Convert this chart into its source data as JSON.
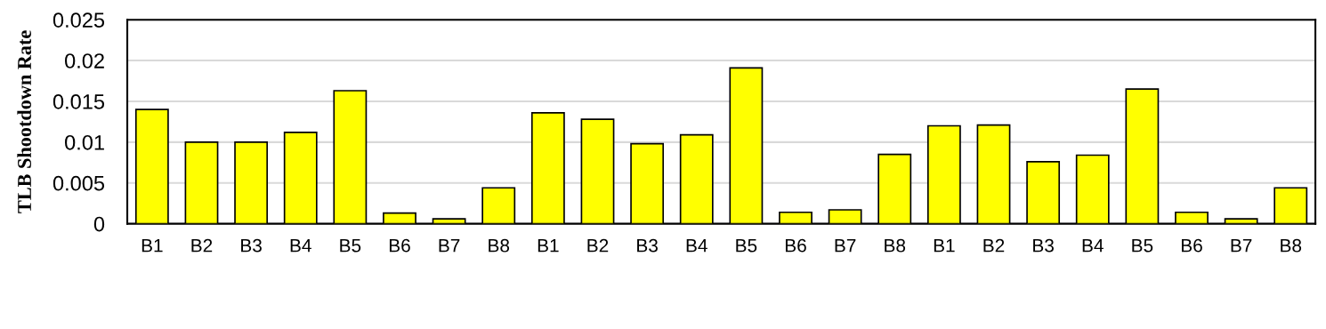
{
  "chart_data": {
    "type": "bar",
    "ylabel": "TLB Shootdown Rate",
    "categories": [
      "B1",
      "B2",
      "B3",
      "B4",
      "B5",
      "B6",
      "B7",
      "B8",
      "B1",
      "B2",
      "B3",
      "B4",
      "B5",
      "B6",
      "B7",
      "B8",
      "B1",
      "B2",
      "B3",
      "B4",
      "B5",
      "B6",
      "B7",
      "B8"
    ],
    "series": [
      {
        "color": "#ffff00",
        "values": [
          0.014,
          0.01,
          0.01,
          0.0112,
          0.0163,
          0.0013,
          0.0006,
          0.0044,
          0.0136,
          0.0128,
          0.0098,
          0.0109,
          0.0191,
          0.0014,
          0.0017,
          0.0085,
          0.012,
          0.0121,
          0.0076,
          0.0084,
          0.0165,
          0.0014,
          0.0006,
          0.0044
        ]
      }
    ],
    "ylim": [
      0,
      0.025
    ],
    "yticks": [
      0,
      0.005,
      0.01,
      0.015,
      0.02,
      0.025
    ],
    "grid": "y"
  }
}
